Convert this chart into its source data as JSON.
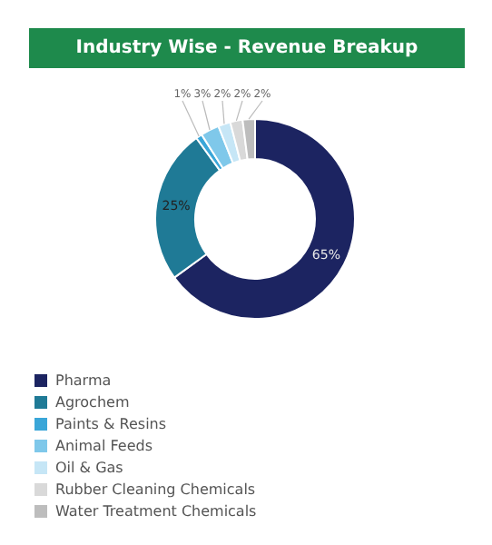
{
  "chart_data": {
    "type": "donut",
    "title": "Industry Wise - Revenue Breakup",
    "categories": [
      "Pharma",
      "Agrochem",
      "Paints & Resins",
      "Animal Feeds",
      "Oil & Gas",
      "Rubber Cleaning Chemicals",
      "Water Treatment Chemicals"
    ],
    "values": [
      65,
      25,
      1,
      3,
      2,
      2,
      2
    ],
    "value_labels": [
      "65%",
      "25%",
      "1%",
      "3%",
      "2%",
      "2%",
      "2%"
    ],
    "colors": [
      "#1c2461",
      "#1f7a96",
      "#3aa6d8",
      "#7fc8ea",
      "#c6e6f6",
      "#d9d9d9",
      "#bdbdbd"
    ],
    "legend": "bottom"
  }
}
